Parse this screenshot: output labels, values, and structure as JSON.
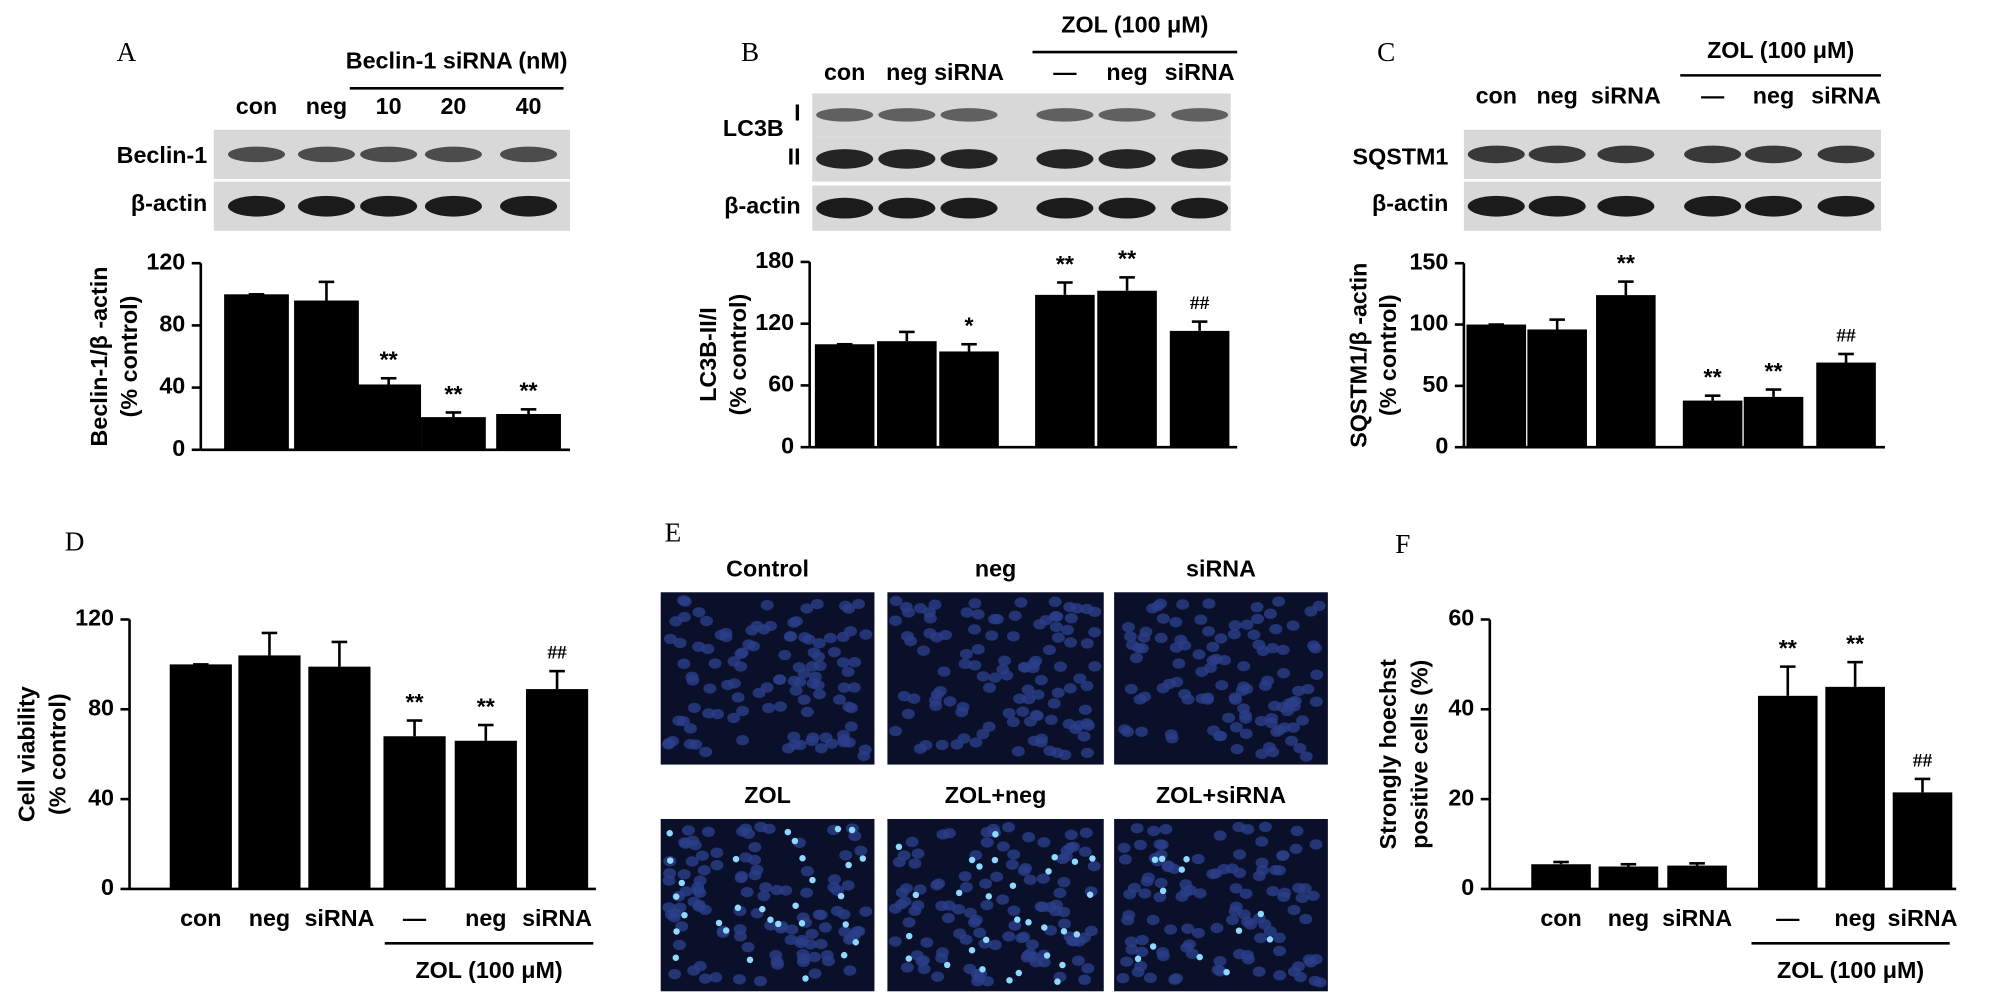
{
  "chart_data": [
    {
      "type": "bar",
      "panel": "A",
      "group_label": "Beclin-1 siRNA (nM)",
      "blot_labels": [
        "Beclin-1",
        "β-actin"
      ],
      "categories": [
        "con",
        "neg",
        "10",
        "20",
        "40"
      ],
      "ylabel": [
        "Beclin-1/β -actin",
        "(% control)"
      ],
      "values": [
        100,
        96,
        42,
        21,
        23
      ],
      "errors": [
        0,
        12,
        4,
        3,
        3
      ],
      "annotations": [
        null,
        null,
        "**",
        "**",
        "**"
      ],
      "color": "#000000",
      "ylim": [
        0,
        120
      ],
      "yticks": [
        0,
        40,
        80,
        120
      ]
    },
    {
      "type": "bar",
      "panel": "B",
      "group_label": "ZOL (100 μM)",
      "blot_labels": [
        "LC3B",
        "I",
        "II",
        "β-actin"
      ],
      "categories": [
        "con",
        "neg",
        "siRNA",
        "—",
        "neg",
        "siRNA"
      ],
      "ylabel": [
        "LC3B-II/I",
        "(% control)"
      ],
      "values": [
        100,
        103,
        93,
        148,
        152,
        113
      ],
      "errors": [
        0,
        9,
        7,
        12,
        13,
        9
      ],
      "annotations": [
        null,
        null,
        "*",
        "**",
        "**",
        "##"
      ],
      "color": "#000000",
      "ylim": [
        0,
        180
      ],
      "yticks": [
        0,
        60,
        120,
        180
      ]
    },
    {
      "type": "bar",
      "panel": "C",
      "group_label": "ZOL (100 μM)",
      "blot_labels": [
        "SQSTM1",
        "β-actin"
      ],
      "categories": [
        "con",
        "neg",
        "siRNA",
        "—",
        "neg",
        "siRNA"
      ],
      "ylabel": [
        "SQSTM1/β -actin",
        "(% control)"
      ],
      "values": [
        100,
        96,
        124,
        38,
        41,
        69
      ],
      "errors": [
        0,
        8,
        11,
        4,
        6,
        7
      ],
      "annotations": [
        null,
        null,
        "**",
        "**",
        "**",
        "##"
      ],
      "color": "#000000",
      "ylim": [
        0,
        150
      ],
      "yticks": [
        0,
        50,
        100,
        150
      ]
    },
    {
      "type": "bar",
      "panel": "D",
      "group_label": "ZOL (100 μM)",
      "categories": [
        "con",
        "neg",
        "siRNA",
        "—",
        "neg",
        "siRNA"
      ],
      "ylabel": [
        "Cell viability",
        "(% control)"
      ],
      "values": [
        100,
        104,
        99,
        68,
        66,
        89
      ],
      "errors": [
        0,
        10,
        11,
        7,
        7,
        8
      ],
      "annotations": [
        null,
        null,
        null,
        "**",
        "**",
        "##"
      ],
      "color": "#000000",
      "ylim": [
        0,
        120
      ],
      "yticks": [
        0,
        40,
        80,
        120
      ]
    },
    {
      "type": "bar",
      "panel": "F",
      "group_label": "ZOL (100 μM)",
      "categories": [
        "con",
        "neg",
        "siRNA",
        "—",
        "neg",
        "siRNA"
      ],
      "ylabel": [
        "Strongly hoechst",
        "positive cells (%)"
      ],
      "values": [
        5.5,
        5,
        5.2,
        43,
        45,
        21.5
      ],
      "errors": [
        0.5,
        0.5,
        0.5,
        6.5,
        5.5,
        3
      ],
      "annotations": [
        null,
        null,
        null,
        "**",
        "**",
        "##"
      ],
      "color": "#000000",
      "ylim": [
        0,
        60
      ],
      "yticks": [
        0,
        20,
        40,
        60
      ]
    }
  ],
  "image_panel": {
    "panel": "E",
    "labels": [
      "Control",
      "neg",
      "siRNA",
      "ZOL",
      "ZOL+neg",
      "ZOL+siRNA"
    ]
  }
}
